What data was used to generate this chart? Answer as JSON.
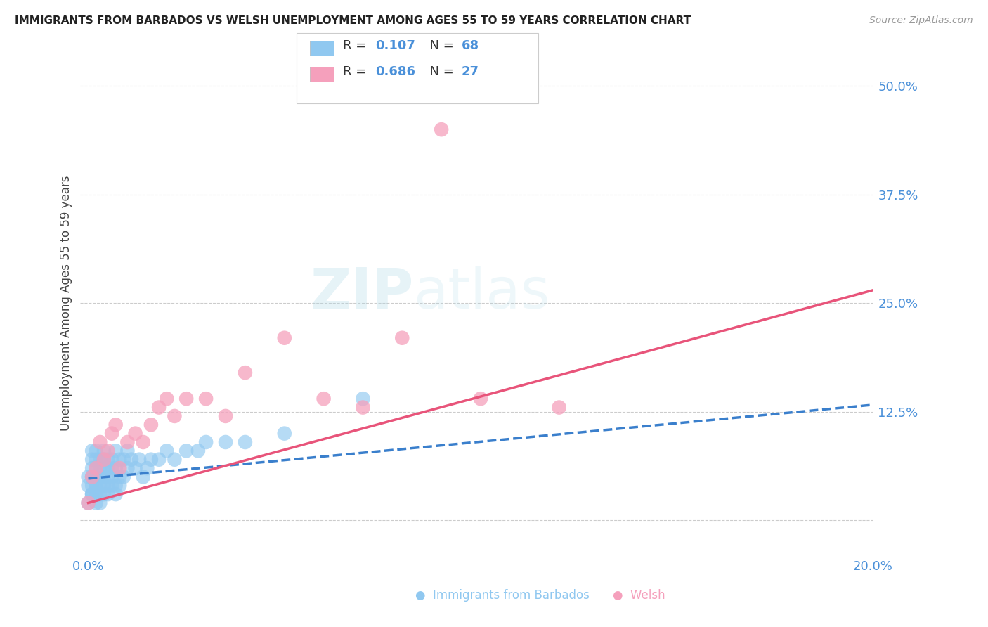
{
  "title": "IMMIGRANTS FROM BARBADOS VS WELSH UNEMPLOYMENT AMONG AGES 55 TO 59 YEARS CORRELATION CHART",
  "source": "Source: ZipAtlas.com",
  "xlabel_barbados": "Immigrants from Barbados",
  "xlabel_welsh": "Welsh",
  "ylabel": "Unemployment Among Ages 55 to 59 years",
  "x_min": 0.0,
  "x_max": 0.2,
  "y_min": -0.04,
  "y_max": 0.54,
  "x_ticks": [
    0.0,
    0.04,
    0.08,
    0.12,
    0.16,
    0.2
  ],
  "x_tick_labels": [
    "0.0%",
    "",
    "",
    "",
    "",
    "20.0%"
  ],
  "y_ticks": [
    0.0,
    0.125,
    0.25,
    0.375,
    0.5
  ],
  "y_tick_labels": [
    "",
    "12.5%",
    "25.0%",
    "37.5%",
    "50.0%"
  ],
  "R_barbados": 0.107,
  "N_barbados": 68,
  "R_welsh": 0.686,
  "N_welsh": 27,
  "color_barbados": "#90C8F0",
  "color_barbados_line": "#3A7FCC",
  "color_welsh": "#F5A0BC",
  "color_welsh_line": "#E8547A",
  "watermark": "ZIPatlas",
  "barbados_x": [
    0.0,
    0.0,
    0.0,
    0.001,
    0.001,
    0.001,
    0.001,
    0.001,
    0.001,
    0.001,
    0.001,
    0.001,
    0.002,
    0.002,
    0.002,
    0.002,
    0.002,
    0.002,
    0.002,
    0.002,
    0.003,
    0.003,
    0.003,
    0.003,
    0.003,
    0.003,
    0.004,
    0.004,
    0.004,
    0.004,
    0.004,
    0.004,
    0.005,
    0.005,
    0.005,
    0.005,
    0.005,
    0.006,
    0.006,
    0.006,
    0.006,
    0.007,
    0.007,
    0.007,
    0.007,
    0.008,
    0.008,
    0.008,
    0.009,
    0.009,
    0.01,
    0.01,
    0.011,
    0.012,
    0.013,
    0.014,
    0.015,
    0.016,
    0.018,
    0.02,
    0.022,
    0.025,
    0.028,
    0.03,
    0.035,
    0.04,
    0.05,
    0.07
  ],
  "barbados_y": [
    0.04,
    0.02,
    0.05,
    0.03,
    0.05,
    0.03,
    0.06,
    0.04,
    0.07,
    0.05,
    0.03,
    0.08,
    0.03,
    0.05,
    0.04,
    0.06,
    0.02,
    0.07,
    0.04,
    0.08,
    0.03,
    0.05,
    0.04,
    0.06,
    0.07,
    0.02,
    0.04,
    0.06,
    0.03,
    0.05,
    0.07,
    0.08,
    0.04,
    0.06,
    0.03,
    0.07,
    0.05,
    0.04,
    0.06,
    0.05,
    0.07,
    0.04,
    0.06,
    0.03,
    0.08,
    0.05,
    0.07,
    0.04,
    0.05,
    0.07,
    0.06,
    0.08,
    0.07,
    0.06,
    0.07,
    0.05,
    0.06,
    0.07,
    0.07,
    0.08,
    0.07,
    0.08,
    0.08,
    0.09,
    0.09,
    0.09,
    0.1,
    0.14
  ],
  "welsh_x": [
    0.0,
    0.001,
    0.002,
    0.003,
    0.004,
    0.005,
    0.006,
    0.007,
    0.008,
    0.01,
    0.012,
    0.014,
    0.016,
    0.018,
    0.02,
    0.022,
    0.025,
    0.03,
    0.035,
    0.04,
    0.05,
    0.06,
    0.07,
    0.08,
    0.09,
    0.1,
    0.12
  ],
  "welsh_y": [
    0.02,
    0.05,
    0.06,
    0.09,
    0.07,
    0.08,
    0.1,
    0.11,
    0.06,
    0.09,
    0.1,
    0.09,
    0.11,
    0.13,
    0.14,
    0.12,
    0.14,
    0.14,
    0.12,
    0.17,
    0.21,
    0.14,
    0.13,
    0.21,
    0.45,
    0.14,
    0.13
  ],
  "line_barbados_x0": 0.0,
  "line_barbados_x1": 0.2,
  "line_barbados_y0": 0.048,
  "line_barbados_y1": 0.133,
  "line_welsh_x0": 0.0,
  "line_welsh_x1": 0.2,
  "line_welsh_y0": 0.02,
  "line_welsh_y1": 0.265
}
